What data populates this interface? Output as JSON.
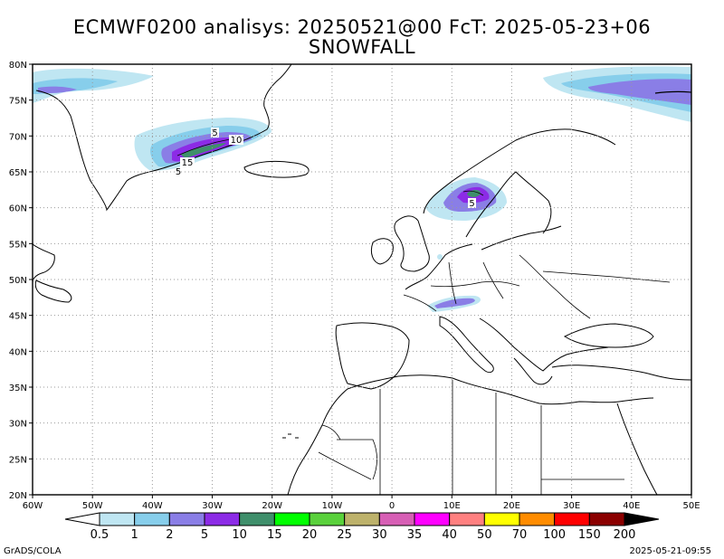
{
  "title_line1": "ECMWF0200 analisys: 20250521@00 FcT: 2025-05-23+06",
  "title_line2": "SNOWFALL",
  "axes": {
    "lon_labels": [
      "60W",
      "50W",
      "40W",
      "30W",
      "20W",
      "10W",
      "0",
      "10E",
      "20E",
      "30E",
      "40E",
      "50E"
    ],
    "lat_labels": [
      "20N",
      "25N",
      "30N",
      "35N",
      "40N",
      "45N",
      "50N",
      "55N",
      "60N",
      "65N",
      "70N",
      "75N",
      "80N"
    ],
    "lon_range": [
      -60,
      50
    ],
    "lat_range": [
      20,
      80
    ],
    "grid": true
  },
  "colorbar": {
    "labels": [
      "0.5",
      "1",
      "2",
      "5",
      "10",
      "15",
      "20",
      "25",
      "30",
      "35",
      "40",
      "50",
      "70",
      "100",
      "150",
      "200"
    ],
    "colors": [
      "#ffffff",
      "#bfe6f2",
      "#87ceeb",
      "#8a7ee6",
      "#8c2be6",
      "#3f8f6b",
      "#00ff00",
      "#5ad13c",
      "#bdb26b",
      "#d75fb5",
      "#ff00ff",
      "#ff8080",
      "#ffff00",
      "#ff8c00",
      "#ff0000",
      "#8b0000",
      "#000000"
    ]
  },
  "contour_labels": [
    "5",
    "10",
    "15",
    "5",
    "5"
  ],
  "footer_left": "GrADS/COLA",
  "footer_right": "2025-05-21-09:55"
}
